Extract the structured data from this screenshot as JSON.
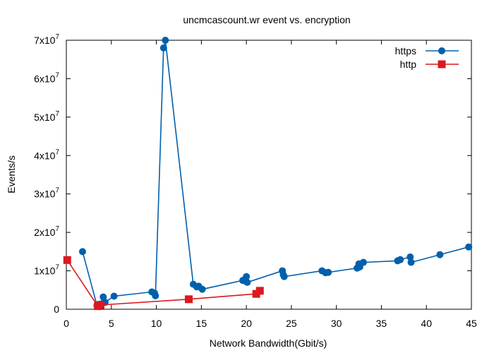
{
  "chart_data": {
    "type": "line",
    "title": "uncmcascount.wr event vs. encryption",
    "xlabel": "Network Bandwidth(Gbit/s)",
    "ylabel": "Events/s",
    "xlim": [
      0,
      45
    ],
    "ylim": [
      0,
      70000000
    ],
    "x_ticks": [
      "0",
      "5",
      "10",
      "15",
      "20",
      "25",
      "30",
      "35",
      "40",
      "45"
    ],
    "x_tick_values": [
      0,
      5,
      10,
      15,
      20,
      25,
      30,
      35,
      40,
      45
    ],
    "y_ticks": [
      {
        "value": 0,
        "base": "0",
        "exp": ""
      },
      {
        "value": 10000000,
        "base": "1x10",
        "exp": "7"
      },
      {
        "value": 20000000,
        "base": "2x10",
        "exp": "7"
      },
      {
        "value": 30000000,
        "base": "3x10",
        "exp": "7"
      },
      {
        "value": 40000000,
        "base": "4x10",
        "exp": "7"
      },
      {
        "value": 50000000,
        "base": "5x10",
        "exp": "7"
      },
      {
        "value": 60000000,
        "base": "6x10",
        "exp": "7"
      },
      {
        "value": 70000000,
        "base": "7x10",
        "exp": "7"
      }
    ],
    "grid": false,
    "legend_position": "top-right",
    "series": [
      {
        "name": "https",
        "color": "#0060ad",
        "marker": "circle",
        "points": [
          [
            1.8,
            15000000
          ],
          [
            3.4,
            1000000
          ],
          [
            3.7,
            1300000
          ],
          [
            4.1,
            3200000
          ],
          [
            4.3,
            1800000
          ],
          [
            5.3,
            3400000
          ],
          [
            9.5,
            4500000
          ],
          [
            9.8,
            4200000
          ],
          [
            9.9,
            3500000
          ],
          [
            10.8,
            68000000
          ],
          [
            11.0,
            70000000
          ],
          [
            14.1,
            6500000
          ],
          [
            14.5,
            5800000
          ],
          [
            14.7,
            6000000
          ],
          [
            15.1,
            5200000
          ],
          [
            19.6,
            7500000
          ],
          [
            19.9,
            7300000
          ],
          [
            20.0,
            8500000
          ],
          [
            20.1,
            7000000
          ],
          [
            24.0,
            10000000
          ],
          [
            24.1,
            9000000
          ],
          [
            24.2,
            8500000
          ],
          [
            28.4,
            10000000
          ],
          [
            28.8,
            9500000
          ],
          [
            29.1,
            9600000
          ],
          [
            32.3,
            10700000
          ],
          [
            32.5,
            11800000
          ],
          [
            32.6,
            11000000
          ],
          [
            33.0,
            12200000
          ],
          [
            36.8,
            12600000
          ],
          [
            37.1,
            12900000
          ],
          [
            38.2,
            13600000
          ],
          [
            38.3,
            12200000
          ],
          [
            41.5,
            14200000
          ],
          [
            44.7,
            16200000
          ]
        ]
      },
      {
        "name": "http",
        "color": "#dd181f",
        "marker": "square",
        "points": [
          [
            0.1,
            12800000
          ],
          [
            3.5,
            800000
          ],
          [
            3.8,
            1100000
          ],
          [
            13.6,
            2600000
          ],
          [
            21.1,
            4000000
          ],
          [
            21.5,
            4800000
          ]
        ]
      }
    ]
  }
}
